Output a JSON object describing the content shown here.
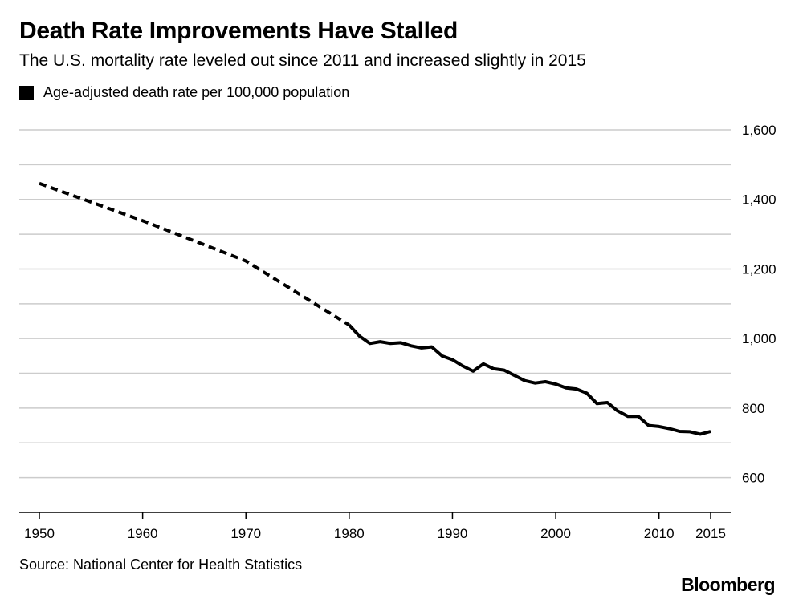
{
  "title": "Death Rate Improvements Have Stalled",
  "subtitle": "The U.S. mortality rate leveled out since 2011 and increased slightly in 2015",
  "legend": {
    "label": "Age-adjusted death rate per 100,000 population",
    "color": "#000000"
  },
  "source": "Source: National Center for Health Statistics",
  "brand": "Bloomberg",
  "chart_data": {
    "type": "line",
    "title": "Death Rate Improvements Have Stalled",
    "subtitle": "The U.S. mortality rate leveled out since 2011 and increased slightly in 2015",
    "xlim": [
      1950,
      2015
    ],
    "ylim": [
      500,
      1600
    ],
    "x_ticks": [
      1950,
      1960,
      1970,
      1980,
      1990,
      2000,
      2010,
      2015
    ],
    "x_tick_labels": [
      "1950",
      "1960",
      "1970",
      "1980",
      "1990",
      "2000",
      "2010",
      "2015"
    ],
    "y_ticks": [
      600,
      800,
      1000,
      1200,
      1400,
      1600
    ],
    "y_tick_labels": [
      "600",
      "800",
      "1,000",
      "1,200",
      "1,400",
      "1,600"
    ],
    "y_axis_position": "right",
    "grid": "horizontal",
    "series": [
      {
        "name": "Age-adjusted death rate per 100,000 population",
        "style": "dashed",
        "color": "#000000",
        "x": [
          1950,
          1960,
          1970,
          1980
        ],
        "y": [
          1446,
          1339,
          1223,
          1039
        ]
      },
      {
        "name": "Age-adjusted death rate per 100,000 population",
        "style": "solid",
        "color": "#000000",
        "x": [
          1980,
          1981,
          1982,
          1983,
          1984,
          1985,
          1986,
          1987,
          1988,
          1989,
          1990,
          1991,
          1992,
          1993,
          1994,
          1995,
          1996,
          1997,
          1998,
          1999,
          2000,
          2001,
          2002,
          2003,
          2004,
          2005,
          2006,
          2007,
          2008,
          2009,
          2010,
          2011,
          2012,
          2013,
          2014,
          2015
        ],
        "y": [
          1039,
          1007,
          986,
          991,
          986,
          988,
          979,
          973,
          976,
          950,
          939,
          921,
          906,
          927,
          913,
          909,
          894,
          879,
          872,
          876,
          869,
          858,
          855,
          843,
          813,
          816,
          792,
          776,
          776,
          750,
          747,
          741,
          733,
          732,
          725,
          733
        ]
      }
    ]
  }
}
